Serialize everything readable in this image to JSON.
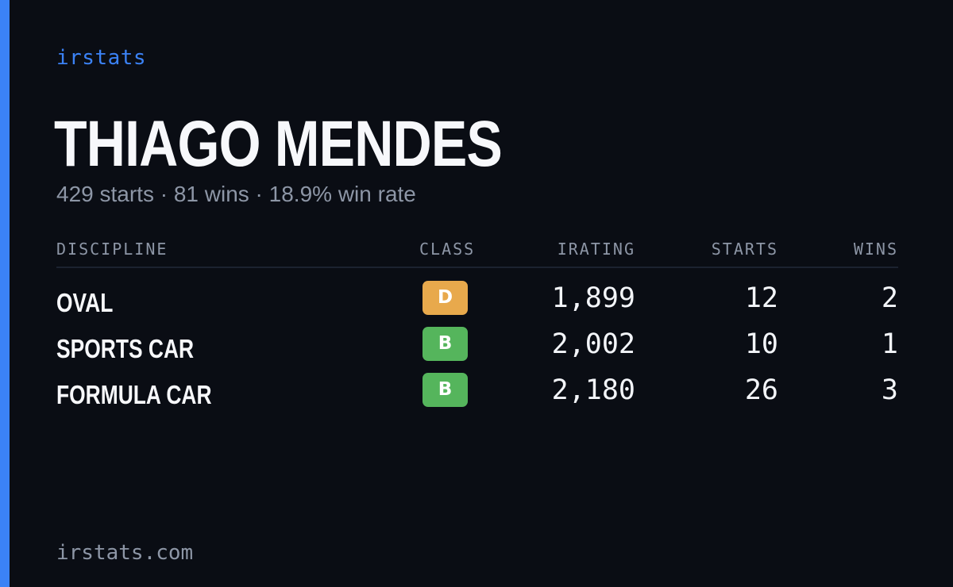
{
  "brand": "irstats",
  "player": {
    "name": "THIAGO MENDES",
    "summary": "429 starts · 81 wins · 18.9% win rate"
  },
  "table": {
    "headers": {
      "discipline": "DISCIPLINE",
      "class": "CLASS",
      "irating": "IRATING",
      "starts": "STARTS",
      "wins": "WINS"
    },
    "rows": [
      {
        "discipline": "OVAL",
        "class": "D",
        "class_color": "#e8a94c",
        "irating": "1,899",
        "starts": "12",
        "wins": "2"
      },
      {
        "discipline": "SPORTS CAR",
        "class": "B",
        "class_color": "#55b55c",
        "irating": "2,002",
        "starts": "10",
        "wins": "1"
      },
      {
        "discipline": "FORMULA CAR",
        "class": "B",
        "class_color": "#55b55c",
        "irating": "2,180",
        "starts": "26",
        "wins": "3"
      }
    ]
  },
  "footer": "irstats.com",
  "colors": {
    "accent": "#3b82f6",
    "background": "#0a0d14",
    "muted_text": "#8d96a6"
  }
}
